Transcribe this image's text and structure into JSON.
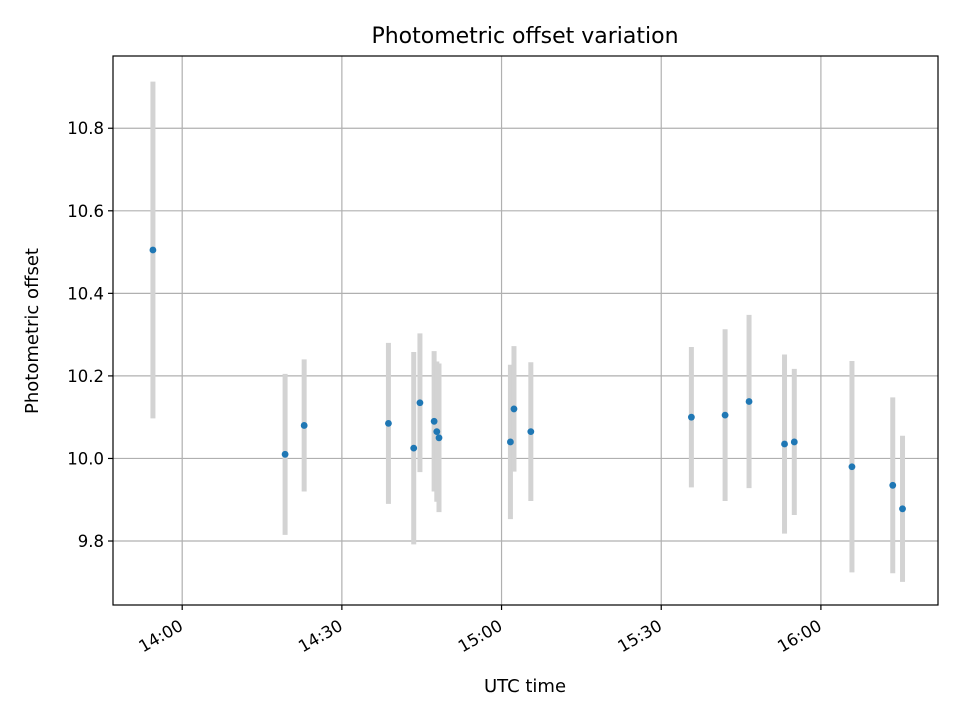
{
  "chart_data": {
    "type": "scatter",
    "title": "Photometric offset variation",
    "xlabel": "UTC time",
    "ylabel": "Photometric offset",
    "x_axis_type": "time",
    "xlim": [
      "13:47",
      "16:22"
    ],
    "ylim": [
      9.645,
      10.975
    ],
    "x_ticks": [
      "14:00",
      "14:30",
      "15:00",
      "15:30",
      "16:00"
    ],
    "y_ticks": [
      9.8,
      10.0,
      10.2,
      10.4,
      10.6,
      10.8
    ],
    "grid": true,
    "error_bars": true,
    "colors": {
      "points": "#1f77b4",
      "error_bars": "#d3d3d3",
      "grid": "#b0b0b0"
    },
    "points": [
      {
        "x": "13:54:30",
        "y": 10.505,
        "err": 0.408
      },
      {
        "x": "14:19:20",
        "y": 10.01,
        "err": 0.195
      },
      {
        "x": "14:22:55",
        "y": 10.08,
        "err": 0.16
      },
      {
        "x": "14:38:45",
        "y": 10.085,
        "err": 0.195
      },
      {
        "x": "14:43:30",
        "y": 10.025,
        "err": 0.233
      },
      {
        "x": "14:44:40",
        "y": 10.135,
        "err": 0.168
      },
      {
        "x": "14:47:20",
        "y": 10.09,
        "err": 0.17
      },
      {
        "x": "14:47:50",
        "y": 10.065,
        "err": 0.17
      },
      {
        "x": "14:48:15",
        "y": 10.05,
        "err": 0.18
      },
      {
        "x": "15:01:40",
        "y": 10.04,
        "err": 0.187
      },
      {
        "x": "15:02:20",
        "y": 10.12,
        "err": 0.152
      },
      {
        "x": "15:05:30",
        "y": 10.065,
        "err": 0.168
      },
      {
        "x": "15:35:40",
        "y": 10.1,
        "err": 0.17
      },
      {
        "x": "15:42:00",
        "y": 10.105,
        "err": 0.208
      },
      {
        "x": "15:46:30",
        "y": 10.138,
        "err": 0.21
      },
      {
        "x": "15:53:10",
        "y": 10.035,
        "err": 0.217
      },
      {
        "x": "15:55:00",
        "y": 10.04,
        "err": 0.177
      },
      {
        "x": "16:05:50",
        "y": 9.98,
        "err": 0.256
      },
      {
        "x": "16:13:30",
        "y": 9.935,
        "err": 0.213
      },
      {
        "x": "16:15:20",
        "y": 9.878,
        "err": 0.177
      }
    ]
  }
}
